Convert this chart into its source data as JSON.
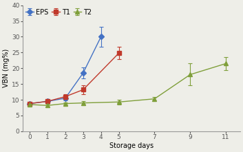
{
  "EPS": {
    "x": [
      0,
      1,
      2,
      3,
      4
    ],
    "y": [
      8.8,
      9.5,
      10.5,
      18.5,
      30.0
    ],
    "yerr": [
      0.3,
      0.5,
      0.7,
      1.8,
      3.2
    ],
    "color": "#4472C4",
    "marker": "D",
    "label": "EPS"
  },
  "T1": {
    "x": [
      0,
      1,
      2,
      3,
      5
    ],
    "y": [
      8.8,
      9.5,
      11.0,
      13.2,
      24.8
    ],
    "yerr": [
      0.3,
      0.5,
      0.8,
      1.5,
      2.0
    ],
    "color": "#C0392B",
    "marker": "s",
    "label": "T1"
  },
  "T2": {
    "x": [
      0,
      1,
      2,
      3,
      5,
      7,
      9,
      11
    ],
    "y": [
      8.5,
      8.2,
      8.8,
      9.0,
      9.3,
      10.3,
      18.0,
      21.5
    ],
    "yerr": [
      0.3,
      0.4,
      0.4,
      0.5,
      0.8,
      0.6,
      3.5,
      2.0
    ],
    "color": "#7F9F3A",
    "marker": "^",
    "label": "T2"
  },
  "xlabel": "Storage days",
  "ylabel": "VBN (mg%)",
  "xlim": [
    -0.4,
    11.8
  ],
  "ylim": [
    0,
    40
  ],
  "yticks": [
    0,
    5,
    10,
    15,
    20,
    25,
    30,
    35,
    40
  ],
  "xticks": [
    0,
    1,
    2,
    3,
    4,
    5,
    7,
    9,
    11
  ],
  "background_color": "#eeeee8",
  "axis_fontsize": 7,
  "legend_fontsize": 7,
  "tick_fontsize": 6.5,
  "markersize": 4,
  "linewidth": 1.0,
  "capsize": 2.5
}
